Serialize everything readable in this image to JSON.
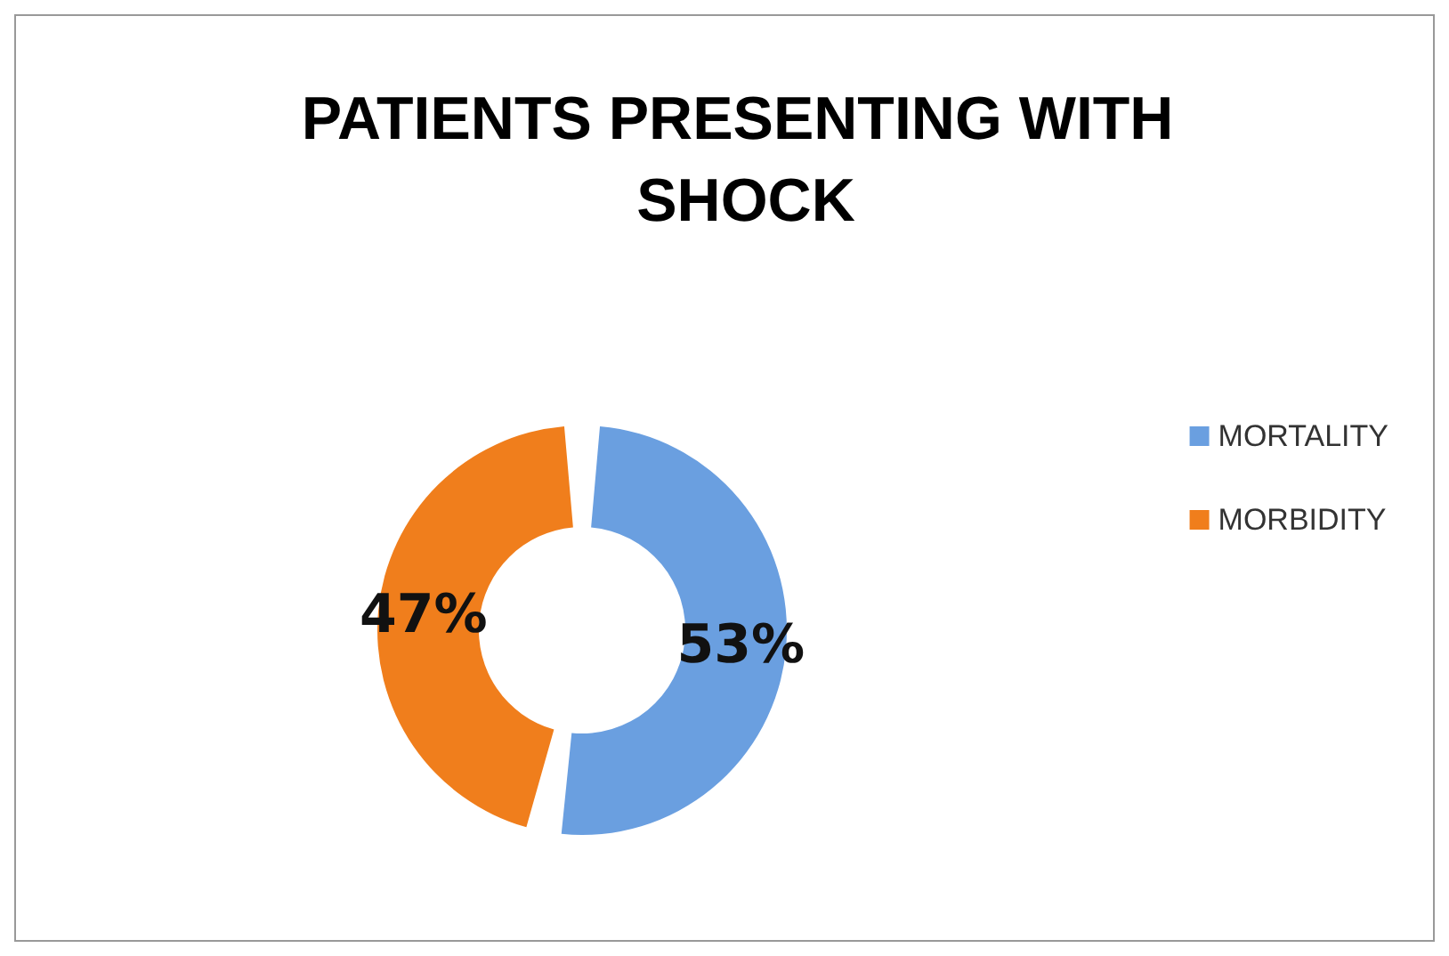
{
  "chart_data": {
    "type": "donut",
    "title": "PATIENTS PRESENTING WITH SHOCK",
    "categories": [
      "MORTALITY",
      "MORBIDITY"
    ],
    "values": [
      53,
      47
    ],
    "colors": [
      "#6a9fe0",
      "#f07e1c"
    ],
    "value_labels": [
      "53%",
      "47%"
    ],
    "legend": "right"
  }
}
